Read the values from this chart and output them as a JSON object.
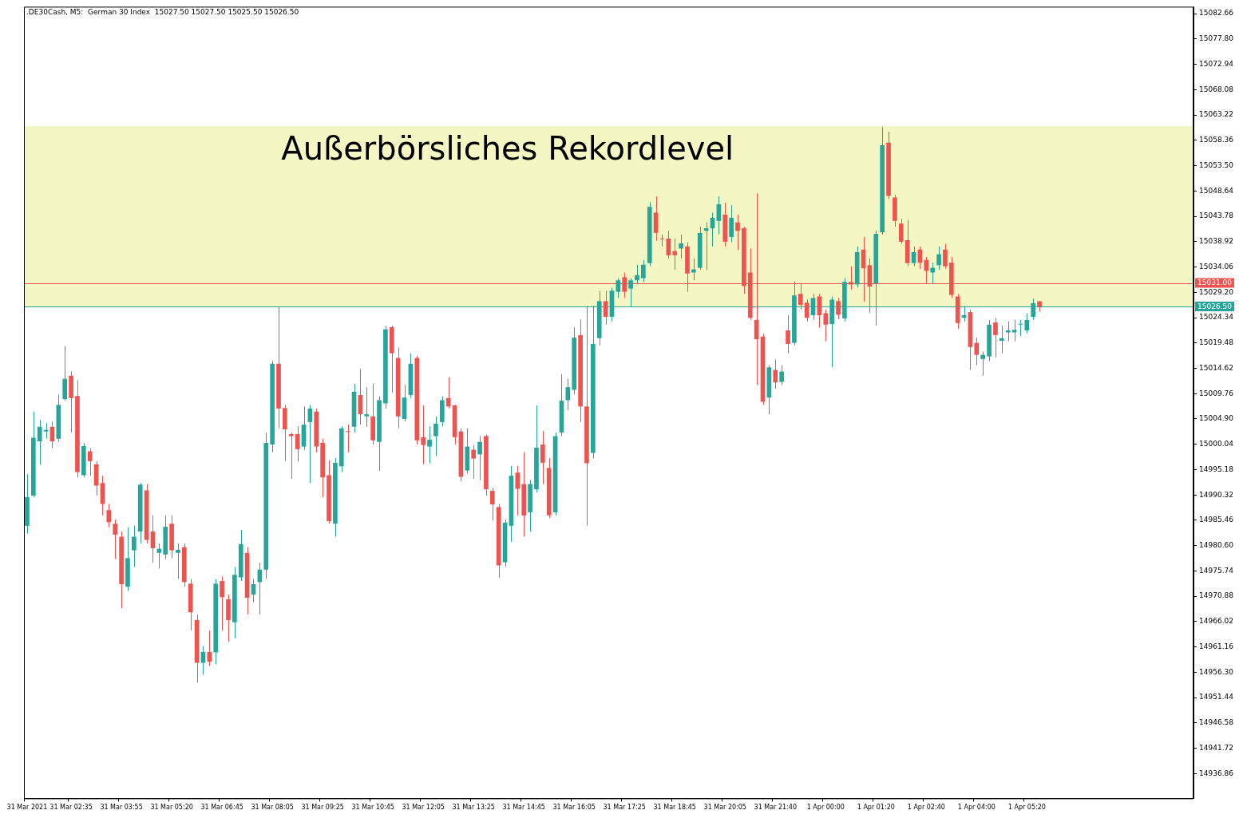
{
  "chart_data": {
    "type": "candlestick",
    "title": ".DE30Cash, M5:  German 30 Index  15027.50 15027.50 15025.50 15026.50",
    "categories": [
      "31 Mar 2021",
      null,
      null,
      null,
      null,
      null,
      null,
      "31 Mar 02:35",
      null,
      null,
      null,
      null,
      null,
      null,
      null,
      "31 Mar 03:55",
      null,
      null,
      null,
      null,
      null,
      null,
      null,
      "31 Mar 05:20",
      null,
      null,
      null,
      null,
      null,
      null,
      null,
      "31 Mar 06:45",
      null,
      null,
      null,
      null,
      null,
      null,
      null,
      "31 Mar 08:05",
      null,
      null,
      null,
      null,
      null,
      null,
      null,
      "31 Mar 09:25",
      null,
      null,
      null,
      null,
      null,
      null,
      null,
      "31 Mar 10:45",
      null,
      null,
      null,
      null,
      null,
      null,
      null,
      "31 Mar 12:05",
      null,
      null,
      null,
      null,
      null,
      null,
      null,
      "31 Mar 13:25",
      null,
      null,
      null,
      null,
      null,
      null,
      null,
      "31 Mar 14:45",
      null,
      null,
      null,
      null,
      null,
      null,
      null,
      "31 Mar 16:05",
      null,
      null,
      null,
      null,
      null,
      null,
      null,
      "31 Mar 17:25",
      null,
      null,
      null,
      null,
      null,
      null,
      null,
      "31 Mar 18:45",
      null,
      null,
      null,
      null,
      null,
      null,
      null,
      "31 Mar 20:05",
      null,
      null,
      null,
      null,
      null,
      null,
      null,
      "31 Mar 21:40",
      null,
      null,
      null,
      null,
      null,
      null,
      null,
      "1 Apr 00:00",
      null,
      null,
      null,
      null,
      null,
      null,
      null,
      "1 Apr 01:20",
      null,
      null,
      null,
      null,
      null,
      null,
      null,
      "1 Apr 02:40",
      null,
      null,
      null,
      null,
      null,
      null,
      null,
      "1 Apr 04:00",
      null,
      null,
      null,
      null,
      null,
      null,
      null,
      "1 Apr 05:20",
      null,
      null,
      null,
      null,
      null,
      null,
      null,
      null,
      null,
      null,
      null,
      null,
      null,
      null,
      null,
      null,
      null,
      null,
      null,
      null,
      null,
      null,
      null,
      null,
      null,
      null
    ],
    "ohlc": [
      [
        14984.4,
        14994.3,
        14982.9,
        14989.9
      ],
      [
        14990.2,
        15006.3,
        14989.9,
        15001.3
      ],
      [
        15000.6,
        15004.7,
        14996.1,
        15003.4
      ],
      [
        15002.5,
        15004.1,
        15001.1,
        15002.8
      ],
      [
        15003.4,
        15004.4,
        14999.3,
        15000.6
      ],
      [
        15001.1,
        15009.6,
        15000.5,
        15007.6
      ],
      [
        15008.7,
        15018.9,
        15008.4,
        15012.6
      ],
      [
        15013.2,
        15014.0,
        15002.3,
        15008.9
      ],
      [
        15009.3,
        15012.3,
        14993.7,
        14994.7
      ],
      [
        14994.1,
        15000.3,
        14993.7,
        14999.7
      ],
      [
        14998.7,
        14999.3,
        14994.0,
        14996.8
      ],
      [
        14996.2,
        14996.8,
        14990.2,
        14992.1
      ],
      [
        14992.6,
        14994.0,
        14986.4,
        14988.6
      ],
      [
        14987.4,
        14988.6,
        14984.1,
        14985.1
      ],
      [
        14984.8,
        14985.6,
        14978.0,
        14982.7
      ],
      [
        14982.3,
        14983.3,
        14968.6,
        14973.2
      ],
      [
        14972.7,
        14984.1,
        14971.9,
        14978.2
      ],
      [
        14979.7,
        14984.4,
        14976.5,
        14982.3
      ],
      [
        14983.3,
        14992.6,
        14981.0,
        14992.3
      ],
      [
        14991.2,
        14992.4,
        14981.0,
        14981.7
      ],
      [
        14983.3,
        14986.4,
        14977.3,
        14980.1
      ],
      [
        14979.2,
        14981.0,
        14976.2,
        14980.0
      ],
      [
        14978.9,
        14986.4,
        14978.0,
        14984.2
      ],
      [
        14984.8,
        14986.4,
        14978.2,
        14979.7
      ],
      [
        14979.2,
        14981.0,
        14974.2,
        14979.8
      ],
      [
        14980.3,
        14981.0,
        14972.7,
        14973.6
      ],
      [
        14973.3,
        14974.2,
        14964.3,
        14967.8
      ],
      [
        14966.3,
        14967.4,
        14954.3,
        14958.1
      ],
      [
        14958.1,
        14961.3,
        14955.8,
        14960.2
      ],
      [
        14960.2,
        14964.3,
        14957.5,
        14958.3
      ],
      [
        14960.1,
        14974.2,
        14957.8,
        14973.3
      ],
      [
        14973.8,
        14974.7,
        14964.3,
        14970.7
      ],
      [
        14970.3,
        14971.2,
        14962.1,
        14966.3
      ],
      [
        14965.9,
        14976.5,
        14962.8,
        14975.0
      ],
      [
        14974.5,
        14983.6,
        14973.8,
        14980.9
      ],
      [
        14979.2,
        14980.3,
        14967.4,
        14970.6
      ],
      [
        14971.2,
        14974.2,
        14969.7,
        14973.2
      ],
      [
        14973.6,
        14977.3,
        14967.4,
        14976.0
      ],
      [
        14976.0,
        15002.3,
        14974.2,
        15000.3
      ],
      [
        15000.0,
        15016.0,
        14998.5,
        15015.5
      ],
      [
        15015.5,
        15026.5,
        15003.1,
        15006.9
      ],
      [
        15007.0,
        15007.6,
        14996.8,
        15002.9
      ],
      [
        15002.0,
        15002.3,
        14993.4,
        15001.6
      ],
      [
        15002.0,
        15003.5,
        14996.7,
        14999.1
      ],
      [
        14999.6,
        15007.3,
        14999.0,
        15003.8
      ],
      [
        15004.3,
        15007.6,
        14992.6,
        15006.9
      ],
      [
        15006.3,
        15006.9,
        14998.5,
        14999.6
      ],
      [
        15000.3,
        15001.1,
        14989.9,
        14993.7
      ],
      [
        14994.1,
        14997.0,
        14984.8,
        14985.3
      ],
      [
        14984.8,
        14997.4,
        14982.3,
        14996.5
      ],
      [
        14995.8,
        15003.5,
        14994.7,
        15003.1
      ],
      [
        15002.5,
        15003.8,
        14998.5,
        15002.4
      ],
      [
        15003.4,
        15011.6,
        15002.3,
        15010.1
      ],
      [
        15009.5,
        15014.5,
        15003.8,
        15005.8
      ],
      [
        15005.4,
        15011.0,
        15003.4,
        15005.8
      ],
      [
        15005.4,
        15011.7,
        15000.0,
        15000.8
      ],
      [
        15000.5,
        15009.2,
        14994.9,
        15008.5
      ],
      [
        15007.9,
        15022.8,
        15006.9,
        15022.1
      ],
      [
        15022.5,
        15022.8,
        15009.9,
        15017.5
      ],
      [
        15016.6,
        15018.6,
        15003.1,
        15005.4
      ],
      [
        15004.9,
        15011.4,
        15004.4,
        15009.0
      ],
      [
        15009.5,
        15017.5,
        15008.9,
        15015.5
      ],
      [
        15016.6,
        15017.0,
        15000.0,
        15000.8
      ],
      [
        15001.4,
        15007.5,
        14996.2,
        14999.9
      ],
      [
        14999.6,
        15003.5,
        14996.4,
        15000.9
      ],
      [
        15001.6,
        15005.4,
        14997.8,
        15004.0
      ],
      [
        15004.3,
        15009.2,
        15003.5,
        15008.5
      ],
      [
        15008.9,
        15012.9,
        15006.9,
        15007.3
      ],
      [
        15007.5,
        15007.6,
        15000.0,
        15001.4
      ],
      [
        15002.5,
        15003.1,
        14992.9,
        14993.8
      ],
      [
        14995.0,
        15003.1,
        14994.4,
        14999.6
      ],
      [
        14999.0,
        14999.9,
        14993.4,
        14997.3
      ],
      [
        14998.1,
        15001.6,
        14993.2,
        15000.5
      ],
      [
        15001.6,
        15001.9,
        14990.2,
        14991.4
      ],
      [
        14991.1,
        14991.7,
        14985.4,
        14988.5
      ],
      [
        14988.0,
        14988.6,
        14974.4,
        14976.8
      ],
      [
        14977.4,
        14985.6,
        14976.5,
        14985.0
      ],
      [
        14984.4,
        14995.9,
        14981.3,
        14994.0
      ],
      [
        14994.6,
        14995.9,
        14986.4,
        14991.5
      ],
      [
        14992.4,
        14998.5,
        14982.3,
        14986.4
      ],
      [
        14987.0,
        14993.2,
        14983.3,
        14992.4
      ],
      [
        14991.4,
        15007.5,
        14990.8,
        14999.4
      ],
      [
        15000.0,
        15002.6,
        14992.4,
        14996.5
      ],
      [
        14995.5,
        14997.4,
        14985.9,
        14986.4
      ],
      [
        14987.0,
        15002.3,
        14986.4,
        15001.6
      ],
      [
        15002.3,
        15013.5,
        15001.6,
        15008.4
      ],
      [
        15008.5,
        15012.6,
        15006.6,
        15011.0
      ],
      [
        15010.5,
        15022.5,
        15009.6,
        15020.5
      ],
      [
        15021.0,
        15024.0,
        15004.3,
        15007.3
      ],
      [
        15007.3,
        15026.6,
        14984.4,
        14996.4
      ],
      [
        14998.4,
        15026.6,
        14997.3,
        15019.3
      ],
      [
        15020.4,
        15029.5,
        15019.0,
        15027.5
      ],
      [
        15027.5,
        15029.5,
        15023.0,
        15024.5
      ],
      [
        15024.5,
        15030.1,
        15023.6,
        15029.5
      ],
      [
        15029.3,
        15031.9,
        15028.1,
        15031.5
      ],
      [
        15032.1,
        15033.0,
        15028.1,
        15029.3
      ],
      [
        15029.9,
        15031.9,
        15026.5,
        15031.5
      ],
      [
        15031.5,
        15034.5,
        15030.9,
        15032.5
      ],
      [
        15031.9,
        15035.4,
        15031.2,
        15034.5
      ],
      [
        15034.8,
        15046.5,
        15034.2,
        15045.6
      ],
      [
        15044.5,
        15047.6,
        15039.1,
        15040.6
      ],
      [
        15039.5,
        15040.3,
        15038.0,
        15039.4
      ],
      [
        15039.5,
        15041.0,
        15035.7,
        15036.3
      ],
      [
        15037.1,
        15039.5,
        15033.5,
        15036.3
      ],
      [
        15037.6,
        15040.3,
        15035.7,
        15038.6
      ],
      [
        15038.0,
        15038.8,
        15029.3,
        15032.8
      ],
      [
        15033.0,
        15035.7,
        15031.5,
        15033.6
      ],
      [
        15033.9,
        15041.8,
        15033.5,
        15040.6
      ],
      [
        15041.0,
        15042.6,
        15033.5,
        15041.5
      ],
      [
        15041.5,
        15044.5,
        15038.0,
        15043.5
      ],
      [
        15042.9,
        15047.6,
        15040.3,
        15046.1
      ],
      [
        15044.1,
        15046.4,
        15038.0,
        15038.9
      ],
      [
        15039.8,
        15045.9,
        15038.8,
        15043.5
      ],
      [
        15042.6,
        15044.1,
        15037.3,
        15041.0
      ],
      [
        15041.5,
        15041.8,
        15028.9,
        15030.4
      ],
      [
        15033.0,
        15037.6,
        15023.9,
        15024.3
      ],
      [
        15023.9,
        15048.2,
        15011.4,
        15020.2
      ],
      [
        15020.7,
        15021.2,
        15007.6,
        15008.2
      ],
      [
        15009.0,
        15015.2,
        15005.8,
        15014.8
      ],
      [
        15014.3,
        15016.3,
        15010.7,
        15011.9
      ],
      [
        15012.0,
        15015.2,
        15011.4,
        15014.0
      ],
      [
        15021.9,
        15024.8,
        15017.5,
        15019.3
      ],
      [
        15019.5,
        15031.3,
        15019.0,
        15028.6
      ],
      [
        15028.9,
        15030.9,
        15025.9,
        15026.8
      ],
      [
        15027.2,
        15027.8,
        15023.6,
        15024.3
      ],
      [
        15024.8,
        15028.9,
        15023.9,
        15028.1
      ],
      [
        15028.4,
        15028.9,
        15022.4,
        15024.8
      ],
      [
        15025.2,
        15025.9,
        15019.8,
        15023.0
      ],
      [
        15023.1,
        15028.4,
        15014.8,
        15027.8
      ],
      [
        15027.5,
        15028.1,
        15024.0,
        15024.9
      ],
      [
        15024.2,
        15031.9,
        15023.6,
        15031.2
      ],
      [
        15031.2,
        15034.2,
        15029.7,
        15030.7
      ],
      [
        15030.7,
        15038.0,
        15030.1,
        15036.9
      ],
      [
        15037.4,
        15039.8,
        15027.4,
        15033.8
      ],
      [
        15034.4,
        15035.7,
        15025.2,
        15030.3
      ],
      [
        15030.9,
        15041.0,
        15022.8,
        15040.4
      ],
      [
        15040.7,
        15060.9,
        15040.3,
        15057.4
      ],
      [
        15057.9,
        15060.0,
        15047.1,
        15047.7
      ],
      [
        15047.4,
        15047.9,
        15041.8,
        15042.9
      ],
      [
        15042.4,
        15043.3,
        15038.5,
        15038.9
      ],
      [
        15039.2,
        15043.0,
        15034.2,
        15034.8
      ],
      [
        15034.8,
        15038.0,
        15034.2,
        15036.9
      ],
      [
        15037.4,
        15038.0,
        15033.7,
        15034.9
      ],
      [
        15035.4,
        15036.0,
        15030.9,
        15033.3
      ],
      [
        15033.0,
        15034.9,
        15030.9,
        15033.9
      ],
      [
        15034.4,
        15038.0,
        15033.5,
        15036.5
      ],
      [
        15037.4,
        15038.5,
        15033.7,
        15034.2
      ],
      [
        15034.9,
        15036.0,
        15028.1,
        15028.7
      ],
      [
        15028.4,
        15028.9,
        15022.2,
        15023.3
      ],
      [
        15024.3,
        15026.6,
        15023.6,
        15024.8
      ],
      [
        15025.4,
        15025.9,
        15014.3,
        15018.7
      ],
      [
        15019.5,
        15020.5,
        15015.2,
        15017.2
      ],
      [
        15016.4,
        15017.8,
        15013.2,
        15017.2
      ],
      [
        15016.9,
        15023.9,
        15016.0,
        15023.0
      ],
      [
        15023.4,
        15024.3,
        15016.7,
        15021.0
      ],
      [
        15019.9,
        15022.8,
        15017.5,
        15020.4
      ],
      [
        15021.5,
        15023.6,
        15019.8,
        15021.9
      ],
      [
        15021.5,
        15023.9,
        15019.8,
        15022.0
      ],
      [
        15023.0,
        15023.9,
        15020.8,
        15023.1
      ],
      [
        15021.9,
        15025.1,
        15021.3,
        15023.9
      ],
      [
        15024.5,
        15028.0,
        15023.9,
        15027.1
      ],
      [
        15027.5,
        15027.5,
        15025.5,
        15026.5
      ],
      null,
      null,
      null,
      null,
      null,
      null,
      null,
      null,
      null,
      null,
      null,
      null,
      null,
      null,
      null,
      null,
      null,
      null,
      null,
      null,
      null,
      null,
      null,
      null
    ],
    "colors": [
      "#26a69a",
      "#26a69a",
      "#26a69a",
      "#26a69a",
      "#ef5350",
      "#26a69a",
      "#26a69a",
      "#ef5350",
      "#ef5350",
      "#26a69a",
      "#ef5350",
      "#ef5350",
      "#ef5350",
      "#ef5350",
      "#ef5350",
      "#ef5350",
      "#26a69a",
      "#26a69a",
      "#26a69a",
      "#ef5350",
      "#ef5350",
      "#26a69a",
      "#26a69a",
      "#ef5350",
      "#26a69a",
      "#ef5350",
      "#ef5350",
      "#ef5350",
      "#26a69a",
      "#ef5350",
      "#26a69a",
      "#ef5350",
      "#ef5350",
      "#26a69a",
      "#26a69a",
      "#ef5350",
      "#26a69a",
      "#26a69a",
      "#26a69a",
      "#26a69a",
      "#ef5350",
      "#ef5350",
      "#ef5350",
      "#ef5350",
      "#26a69a",
      "#26a69a",
      "#ef5350",
      "#ef5350",
      "#ef5350",
      "#26a69a",
      "#26a69a",
      "#ef5350",
      "#26a69a",
      "#ef5350",
      "#26a69a",
      "#ef5350",
      "#26a69a",
      "#26a69a",
      "#ef5350",
      "#ef5350",
      "#26a69a",
      "#26a69a",
      "#ef5350",
      "#ef5350",
      "#26a69a",
      "#26a69a",
      "#26a69a",
      "#ef5350",
      "#ef5350",
      "#ef5350",
      "#26a69a",
      "#ef5350",
      "#26a69a",
      "#ef5350",
      "#ef5350",
      "#ef5350",
      "#26a69a",
      "#26a69a",
      "#ef5350",
      "#ef5350",
      "#26a69a",
      "#26a69a",
      "#ef5350",
      "#ef5350",
      "#26a69a",
      "#26a69a",
      "#26a69a",
      "#26a69a",
      "#ef5350",
      "#ef5350",
      "#26a69a",
      "#26a69a",
      "#ef5350",
      "#26a69a",
      "#26a69a",
      "#ef5350",
      "#26a69a",
      "#26a69a",
      "#26a69a",
      "#26a69a",
      "#ef5350",
      "#ef5350",
      "#ef5350",
      "#ef5350",
      "#26a69a",
      "#ef5350",
      "#26a69a",
      "#26a69a",
      "#26a69a",
      "#26a69a",
      "#26a69a",
      "#ef5350",
      "#26a69a",
      "#ef5350",
      "#ef5350",
      "#ef5350",
      "#ef5350",
      "#ef5350",
      "#26a69a",
      "#ef5350",
      "#26a69a",
      "#ef5350",
      "#26a69a",
      "#ef5350",
      "#ef5350",
      "#26a69a",
      "#ef5350",
      "#ef5350",
      "#26a69a",
      "#ef5350",
      "#26a69a",
      "#ef5350",
      "#26a69a",
      "#ef5350",
      "#ef5350",
      "#26a69a",
      "#26a69a",
      "#ef5350",
      "#ef5350",
      "#ef5350",
      "#ef5350",
      "#26a69a",
      "#ef5350",
      "#ef5350",
      "#26a69a",
      "#26a69a",
      "#ef5350",
      "#ef5350",
      "#ef5350",
      "#26a69a",
      "#ef5350",
      "#ef5350",
      "#26a69a",
      "#26a69a",
      "#ef5350",
      "#26a69a",
      "#26a69a",
      "#26a69a",
      "#26a69a",
      "#26a69a",
      "#26a69a",
      "#ef5350",
      null,
      null,
      null,
      null,
      null,
      null,
      null,
      null,
      null,
      null,
      null,
      null,
      null,
      null,
      null,
      null,
      null,
      null,
      null,
      null,
      null,
      null,
      null,
      null
    ],
    "ylim": [
      14932.1,
      15084.0
    ],
    "yticks": [
      15082.66,
      {
        "value": 15077.8,
        "label": "15077.80"
      },
      15072.94,
      15068.08,
      15063.22,
      15058.36,
      {
        "value": 15053.5,
        "label": "15053.50"
      },
      15048.64,
      15043.78,
      15038.92,
      15034.06,
      {
        "value": 15029.2,
        "label": "15029.20"
      },
      15024.34,
      15019.48,
      15014.62,
      15009.76,
      {
        "value": 15004.9,
        "label": "15004.90"
      },
      15000.04,
      14995.18,
      14990.32,
      14985.46,
      {
        "value": 14980.6,
        "label": "14980.60"
      },
      14975.74,
      14970.88,
      14966.02,
      14961.16,
      {
        "value": 14956.3,
        "label": "14956.30"
      },
      14951.44,
      14946.58,
      14941.72,
      14936.86
    ],
    "bands": [
      {
        "axis": "y",
        "from": 15026.5,
        "to": 15061.1,
        "label": "Außerbörsliches Rekordlevel",
        "color": "#f4f7c4"
      }
    ],
    "ref_lines": [
      {
        "axis": "y",
        "value": 15031.0,
        "label": "15031.00",
        "color": "#ef5350"
      },
      {
        "axis": "y",
        "value": 15026.5,
        "label": "15026.50",
        "color": "#26a69a"
      }
    ]
  }
}
